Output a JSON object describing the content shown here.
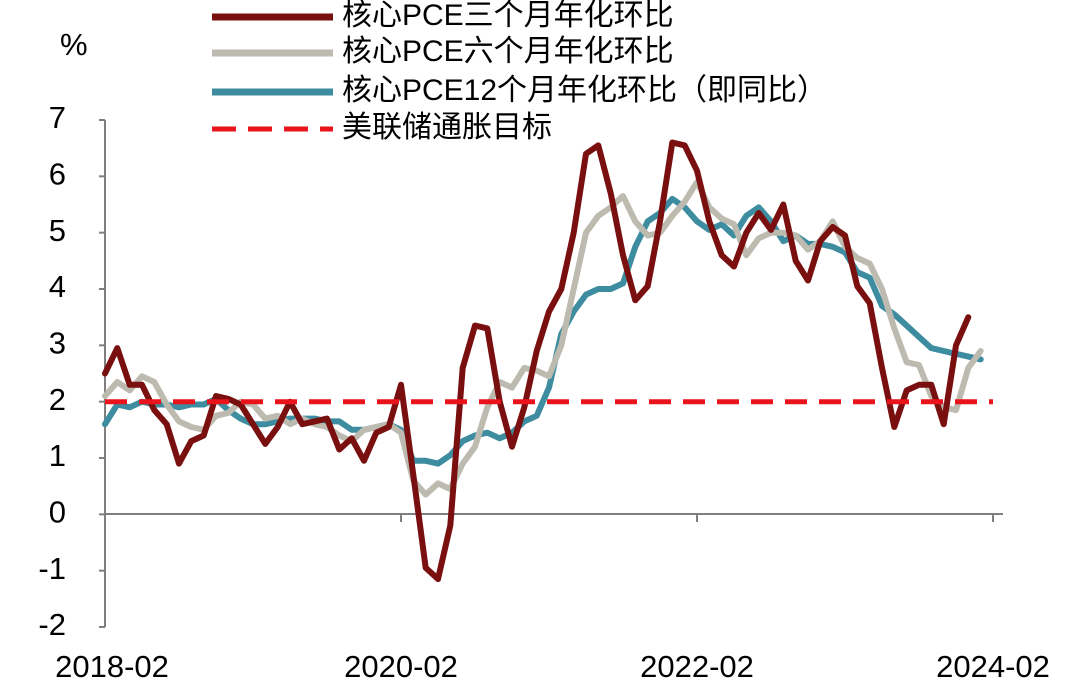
{
  "chart_data": {
    "type": "line",
    "title": "",
    "ylabel": "%",
    "xlabel": "",
    "ylim": [
      -2,
      7
    ],
    "y_ticks": [
      "-2",
      "-1",
      "0",
      "1",
      "2",
      "3",
      "4",
      "5",
      "6",
      "7"
    ],
    "x_ticks": [
      "2018-02",
      "2020-02",
      "2022-02",
      "2024-02"
    ],
    "x_tick_index": [
      0,
      24,
      48,
      72
    ],
    "n_months": 74,
    "grid": false,
    "legend_position": "top",
    "series": [
      {
        "name": "核心PCE三个月年化环比",
        "color": "#7a0f0f",
        "style": "solid",
        "values": [
          2.5,
          2.95,
          2.3,
          2.3,
          1.85,
          1.6,
          0.9,
          1.3,
          1.4,
          2.1,
          2.05,
          1.95,
          1.6,
          1.25,
          1.55,
          2.0,
          1.6,
          1.65,
          1.7,
          1.15,
          1.35,
          0.95,
          1.45,
          1.55,
          2.3,
          0.7,
          -0.95,
          -1.15,
          -0.2,
          2.6,
          3.35,
          3.3,
          2.0,
          1.2,
          1.9,
          2.9,
          3.6,
          4.0,
          5.0,
          6.4,
          6.55,
          5.7,
          4.6,
          3.8,
          4.05,
          5.2,
          6.6,
          6.55,
          6.1,
          5.2,
          4.6,
          4.4,
          5.0,
          5.35,
          5.05,
          5.5,
          4.5,
          4.15,
          4.85,
          5.1,
          4.95,
          4.05,
          3.75,
          2.6,
          1.55,
          2.2,
          2.3,
          2.3,
          1.6,
          3.0,
          3.5
        ]
      },
      {
        "name": "核心PCE六个月年化环比",
        "color": "#bdbab0",
        "style": "solid",
        "values": [
          2.1,
          2.35,
          2.2,
          2.45,
          2.35,
          1.95,
          1.65,
          1.55,
          1.5,
          1.75,
          1.8,
          2.0,
          1.95,
          1.7,
          1.75,
          1.6,
          1.7,
          1.6,
          1.55,
          1.4,
          1.3,
          1.5,
          1.55,
          1.6,
          1.45,
          0.6,
          0.35,
          0.55,
          0.45,
          0.9,
          1.2,
          1.9,
          2.35,
          2.25,
          2.6,
          2.55,
          2.45,
          3.0,
          4.0,
          5.0,
          5.3,
          5.45,
          5.65,
          5.2,
          4.95,
          5.0,
          5.3,
          5.55,
          5.9,
          5.45,
          5.25,
          5.15,
          4.6,
          4.9,
          5.0,
          5.0,
          4.95,
          4.7,
          4.85,
          5.2,
          4.75,
          4.55,
          4.45,
          4.0,
          3.3,
          2.7,
          2.65,
          2.1,
          1.9,
          1.85,
          2.6,
          2.9
        ]
      },
      {
        "name": "核心PCE12个月年化环比（即同比）",
        "color": "#3e8ca0",
        "style": "solid",
        "values": [
          1.6,
          1.95,
          1.9,
          2.0,
          1.95,
          1.95,
          1.9,
          1.95,
          1.95,
          2.05,
          1.85,
          1.7,
          1.6,
          1.6,
          1.65,
          1.7,
          1.7,
          1.7,
          1.65,
          1.65,
          1.5,
          1.5,
          1.55,
          1.6,
          1.5,
          0.95,
          0.95,
          0.9,
          1.05,
          1.3,
          1.4,
          1.45,
          1.35,
          1.45,
          1.65,
          1.75,
          2.25,
          3.2,
          3.6,
          3.9,
          4.0,
          4.0,
          4.1,
          4.75,
          5.2,
          5.35,
          5.6,
          5.45,
          5.2,
          5.05,
          5.15,
          4.95,
          5.3,
          5.45,
          5.2,
          4.85,
          4.95,
          4.8,
          4.8,
          4.75,
          4.65,
          4.3,
          4.2,
          3.7,
          3.55,
          3.35,
          3.15,
          2.95,
          2.9,
          2.85,
          2.8,
          2.75
        ]
      },
      {
        "name": "美联储通胀目标",
        "color": "#e8131b",
        "style": "dashed",
        "values": [
          2,
          2,
          2,
          2,
          2,
          2,
          2,
          2,
          2,
          2,
          2,
          2,
          2,
          2,
          2,
          2,
          2,
          2,
          2,
          2,
          2,
          2,
          2,
          2,
          2,
          2,
          2,
          2,
          2,
          2,
          2,
          2,
          2,
          2,
          2,
          2,
          2,
          2,
          2,
          2,
          2,
          2,
          2,
          2,
          2,
          2,
          2,
          2,
          2,
          2,
          2,
          2,
          2,
          2,
          2,
          2,
          2,
          2,
          2,
          2,
          2,
          2,
          2,
          2,
          2,
          2,
          2,
          2,
          2,
          2,
          2,
          2,
          2
        ]
      }
    ]
  }
}
